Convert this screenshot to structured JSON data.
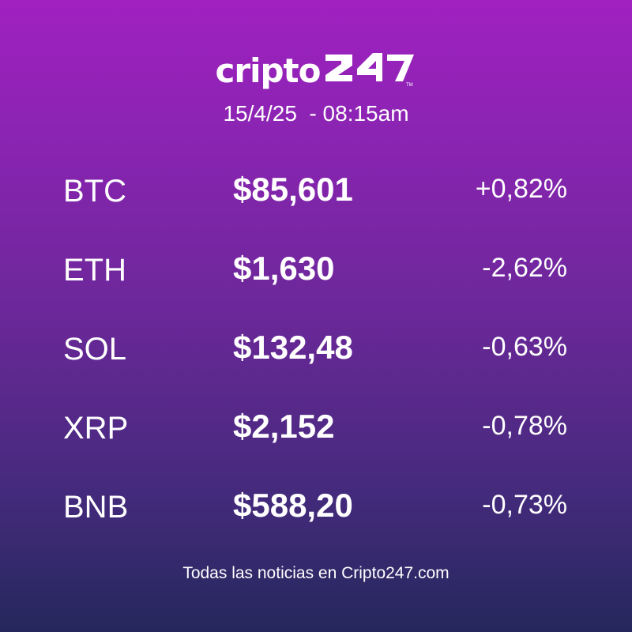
{
  "brand": {
    "wordmark": "cripto",
    "logo_mark_text": "247",
    "trademark": "TM"
  },
  "header": {
    "datetime": "15/4/25  - 08:15am"
  },
  "rows": [
    {
      "symbol": "BTC",
      "price": "$85,601",
      "change": "+0,82%"
    },
    {
      "symbol": "ETH",
      "price": "$1,630",
      "change": "-2,62%"
    },
    {
      "symbol": "SOL",
      "price": "$132,48",
      "change": "-0,63%"
    },
    {
      "symbol": "XRP",
      "price": "$2,152",
      "change": "-0,78%"
    },
    {
      "symbol": "BNB",
      "price": "$588,20",
      "change": "-0,73%"
    }
  ],
  "footer": {
    "text": "Todas las noticias en Cripto247.com"
  },
  "colors": {
    "gradient_top": "#a021c0",
    "gradient_bottom": "#25285c",
    "text": "#ffffff"
  }
}
